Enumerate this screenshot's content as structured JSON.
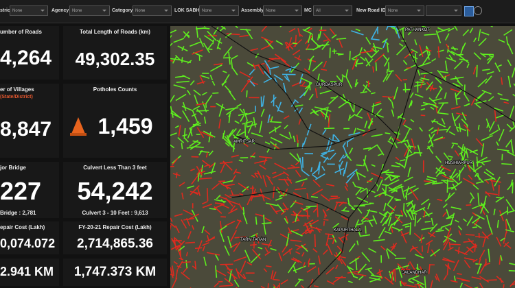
{
  "filters": [
    {
      "label": "strict",
      "value": "None"
    },
    {
      "label": "Agency",
      "value": "None"
    },
    {
      "label": "Category",
      "value": "None"
    },
    {
      "label": "LOK SABHA",
      "value": "None"
    },
    {
      "label": "Assembly",
      "value": "None"
    },
    {
      "label": "MC",
      "value": "All"
    },
    {
      "label": "New Road ID",
      "value": "None"
    }
  ],
  "cards": {
    "roads": {
      "title": "umber of  Roads",
      "value": "4,264"
    },
    "length": {
      "title": "Total Length of  Roads (km)",
      "value": "49,302.35"
    },
    "villages": {
      "title": "er of Villages",
      "subtitle": "(State/District)",
      "value": "8,847"
    },
    "potholes": {
      "title": "Potholes Counts",
      "value": "1,459"
    },
    "bridge": {
      "title": "jor Bridge",
      "value": "227",
      "footer": "Bridge : 2,781"
    },
    "culvert": {
      "title": "Culvert Less Than 3 feet",
      "value": "54,242",
      "footer": "Culvert 3 - 10 Feet : 9,613"
    },
    "repair_left": {
      "title": "epair Cost (Lakh)",
      "value": "0,074.072"
    },
    "repair": {
      "title": "FY-20-21 Repair Cost (Lakh)",
      "value": "2,714,865.36"
    },
    "km_left": {
      "value": "2.941 KM"
    },
    "km": {
      "value": "1,747.373 KM"
    }
  },
  "map": {
    "labels": [
      "PATHANKOT",
      "GURDASPUR",
      "AMRITSAR",
      "HOSHIARPUR",
      "KAPURTHALA",
      "TARN TARAN",
      "JALANDHAR"
    ]
  }
}
